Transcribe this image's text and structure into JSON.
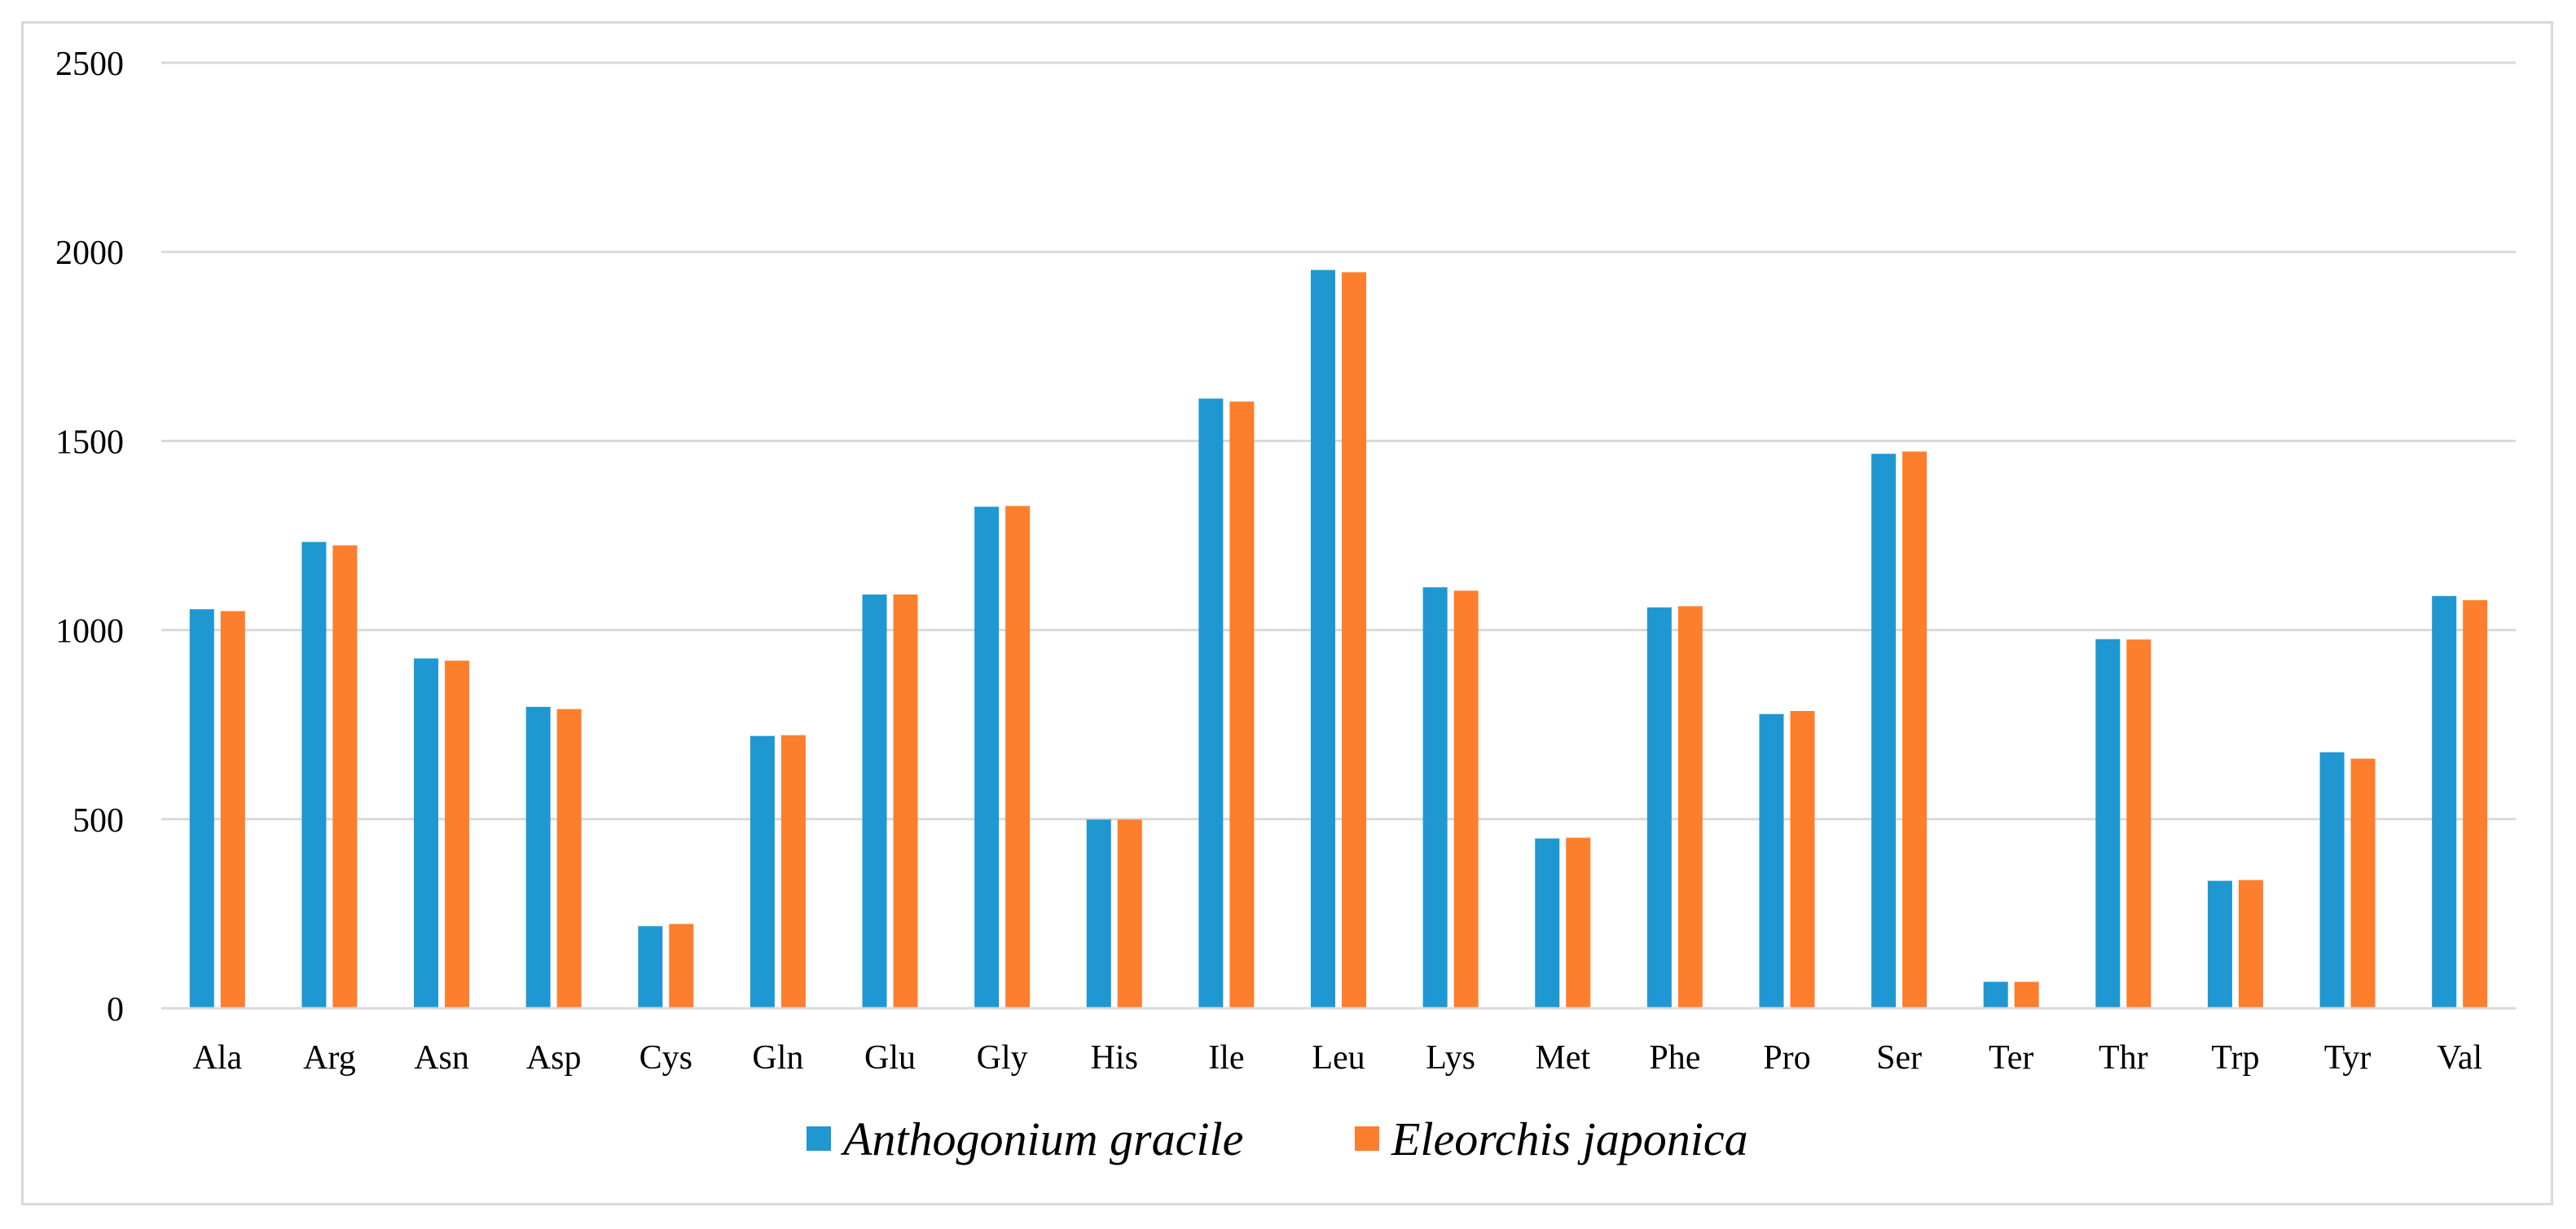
{
  "chart_data": {
    "type": "bar",
    "title": "",
    "xlabel": "",
    "ylabel": "",
    "ylim": [
      0,
      2500
    ],
    "yticks": [
      0,
      500,
      1000,
      1500,
      2000,
      2500
    ],
    "grid": true,
    "legend_position": "bottom",
    "categories": [
      "Ala",
      "Arg",
      "Asn",
      "Asp",
      "Cys",
      "Gln",
      "Glu",
      "Gly",
      "His",
      "Ile",
      "Leu",
      "Lys",
      "Met",
      "Phe",
      "Pro",
      "Ser",
      "Ter",
      "Thr",
      "Trp",
      "Tyr",
      "Val"
    ],
    "series": [
      {
        "name": "Anthogonium gracile",
        "color": "#1f97d1",
        "values": [
          1055,
          1233,
          925,
          797,
          217,
          720,
          1094,
          1326,
          499,
          1612,
          1952,
          1113,
          449,
          1060,
          778,
          1466,
          70,
          976,
          337,
          677,
          1090
        ]
      },
      {
        "name": "Eleorchis japonica",
        "color": "#fd7e2d",
        "values": [
          1050,
          1224,
          919,
          791,
          223,
          722,
          1094,
          1328,
          499,
          1604,
          1946,
          1104,
          451,
          1063,
          786,
          1472,
          70,
          975,
          339,
          660,
          1079
        ]
      }
    ]
  }
}
